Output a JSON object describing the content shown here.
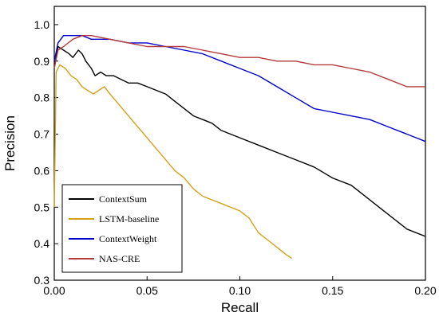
{
  "chart_data": {
    "type": "line",
    "xlabel": "Recall",
    "ylabel": "Precision",
    "xlim": [
      0,
      0.2
    ],
    "ylim": [
      0.3,
      1.05
    ],
    "xticks": [
      0.0,
      0.05,
      0.1,
      0.15,
      0.2
    ],
    "xtick_labels": [
      "0.00",
      "0.05",
      "0.10",
      "0.15",
      "0.20"
    ],
    "yticks": [
      0.3,
      0.4,
      0.5,
      0.6,
      0.7,
      0.8,
      0.9,
      1.0
    ],
    "ytick_labels": [
      "0.3",
      "0.4",
      "0.5",
      "0.6",
      "0.7",
      "0.8",
      "0.9",
      "1.0"
    ],
    "grid": false,
    "legend_position": "bottom-left",
    "series": [
      {
        "name": "ContextSum",
        "color": "#000000",
        "points": [
          [
            0.0,
            0.88
          ],
          [
            0.002,
            0.94
          ],
          [
            0.005,
            0.93
          ],
          [
            0.008,
            0.92
          ],
          [
            0.01,
            0.91
          ],
          [
            0.013,
            0.93
          ],
          [
            0.015,
            0.92
          ],
          [
            0.017,
            0.9
          ],
          [
            0.02,
            0.88
          ],
          [
            0.022,
            0.86
          ],
          [
            0.025,
            0.87
          ],
          [
            0.028,
            0.86
          ],
          [
            0.032,
            0.86
          ],
          [
            0.036,
            0.85
          ],
          [
            0.04,
            0.84
          ],
          [
            0.045,
            0.84
          ],
          [
            0.05,
            0.83
          ],
          [
            0.055,
            0.82
          ],
          [
            0.06,
            0.81
          ],
          [
            0.065,
            0.79
          ],
          [
            0.07,
            0.77
          ],
          [
            0.075,
            0.75
          ],
          [
            0.08,
            0.74
          ],
          [
            0.085,
            0.73
          ],
          [
            0.09,
            0.71
          ],
          [
            0.095,
            0.7
          ],
          [
            0.1,
            0.69
          ],
          [
            0.11,
            0.67
          ],
          [
            0.12,
            0.65
          ],
          [
            0.13,
            0.63
          ],
          [
            0.14,
            0.61
          ],
          [
            0.15,
            0.58
          ],
          [
            0.16,
            0.56
          ],
          [
            0.17,
            0.52
          ],
          [
            0.18,
            0.48
          ],
          [
            0.19,
            0.44
          ],
          [
            0.2,
            0.42
          ]
        ]
      },
      {
        "name": "LSTM-baseline",
        "color": "#d4a017",
        "points": [
          [
            0.0,
            0.5
          ],
          [
            0.001,
            0.87
          ],
          [
            0.003,
            0.89
          ],
          [
            0.006,
            0.88
          ],
          [
            0.009,
            0.86
          ],
          [
            0.012,
            0.85
          ],
          [
            0.015,
            0.83
          ],
          [
            0.018,
            0.82
          ],
          [
            0.021,
            0.81
          ],
          [
            0.024,
            0.82
          ],
          [
            0.027,
            0.83
          ],
          [
            0.03,
            0.81
          ],
          [
            0.035,
            0.78
          ],
          [
            0.04,
            0.75
          ],
          [
            0.045,
            0.72
          ],
          [
            0.05,
            0.69
          ],
          [
            0.055,
            0.66
          ],
          [
            0.06,
            0.63
          ],
          [
            0.065,
            0.6
          ],
          [
            0.07,
            0.58
          ],
          [
            0.075,
            0.55
          ],
          [
            0.08,
            0.53
          ],
          [
            0.09,
            0.51
          ],
          [
            0.1,
            0.49
          ],
          [
            0.105,
            0.47
          ],
          [
            0.11,
            0.43
          ],
          [
            0.115,
            0.41
          ],
          [
            0.12,
            0.39
          ],
          [
            0.125,
            0.37
          ],
          [
            0.128,
            0.36
          ]
        ]
      },
      {
        "name": "ContextWeight",
        "color": "#0000cc",
        "points": [
          [
            0.0,
            0.9
          ],
          [
            0.002,
            0.95
          ],
          [
            0.005,
            0.97
          ],
          [
            0.01,
            0.97
          ],
          [
            0.015,
            0.97
          ],
          [
            0.02,
            0.96
          ],
          [
            0.03,
            0.96
          ],
          [
            0.04,
            0.95
          ],
          [
            0.05,
            0.95
          ],
          [
            0.06,
            0.94
          ],
          [
            0.07,
            0.93
          ],
          [
            0.08,
            0.92
          ],
          [
            0.09,
            0.9
          ],
          [
            0.1,
            0.88
          ],
          [
            0.11,
            0.86
          ],
          [
            0.12,
            0.83
          ],
          [
            0.13,
            0.8
          ],
          [
            0.14,
            0.77
          ],
          [
            0.15,
            0.76
          ],
          [
            0.16,
            0.75
          ],
          [
            0.17,
            0.74
          ],
          [
            0.18,
            0.72
          ],
          [
            0.19,
            0.7
          ],
          [
            0.2,
            0.68
          ]
        ]
      },
      {
        "name": "NAS-CRE",
        "color": "#b33a3a",
        "points": [
          [
            0.0,
            0.88
          ],
          [
            0.002,
            0.93
          ],
          [
            0.005,
            0.94
          ],
          [
            0.01,
            0.96
          ],
          [
            0.015,
            0.97
          ],
          [
            0.02,
            0.97
          ],
          [
            0.03,
            0.96
          ],
          [
            0.04,
            0.95
          ],
          [
            0.05,
            0.94
          ],
          [
            0.06,
            0.94
          ],
          [
            0.07,
            0.94
          ],
          [
            0.08,
            0.93
          ],
          [
            0.09,
            0.92
          ],
          [
            0.1,
            0.91
          ],
          [
            0.11,
            0.91
          ],
          [
            0.12,
            0.9
          ],
          [
            0.13,
            0.9
          ],
          [
            0.14,
            0.89
          ],
          [
            0.15,
            0.89
          ],
          [
            0.16,
            0.88
          ],
          [
            0.17,
            0.87
          ],
          [
            0.18,
            0.85
          ],
          [
            0.19,
            0.83
          ],
          [
            0.2,
            0.83
          ]
        ]
      }
    ]
  }
}
